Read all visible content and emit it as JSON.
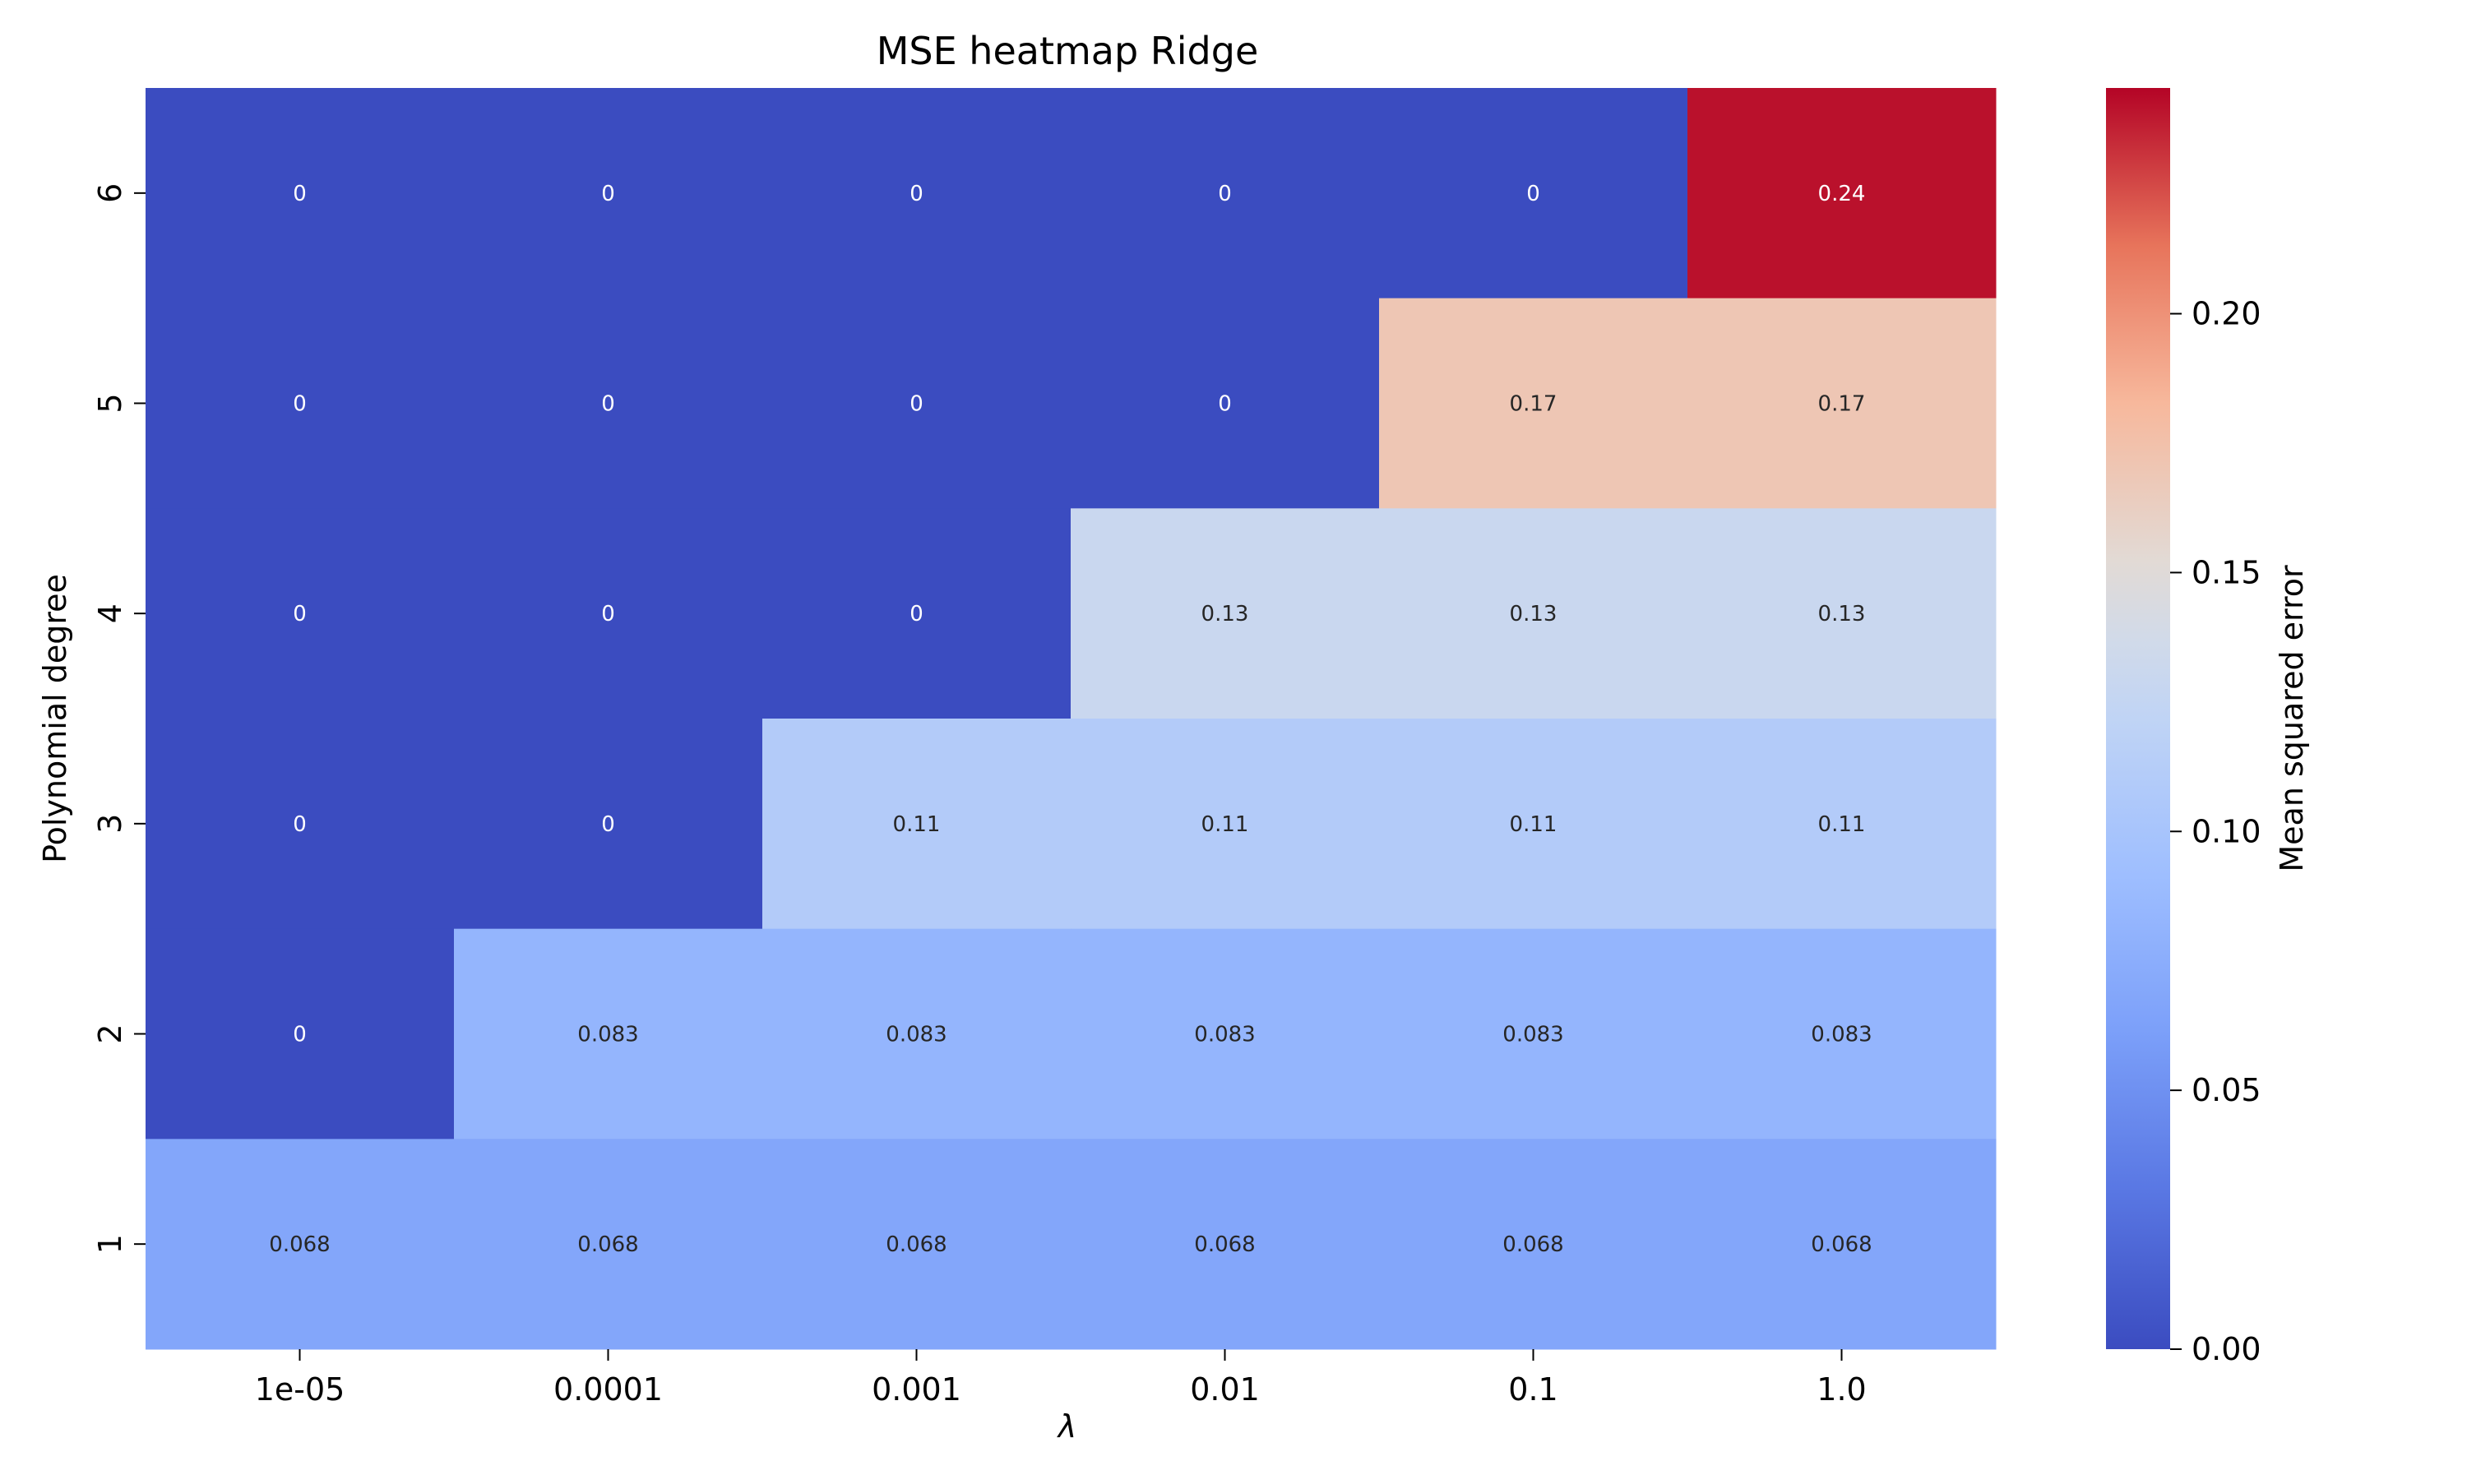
{
  "chart_data": {
    "type": "heatmap",
    "title": "MSE heatmap Ridge",
    "xlabel": "λ",
    "ylabel": "Polynomial degree",
    "x_categories": [
      "1e-05",
      "0.0001",
      "0.001",
      "0.01",
      "0.1",
      "1.0"
    ],
    "y_categories": [
      "6",
      "5",
      "4",
      "3",
      "2",
      "1"
    ],
    "values": [
      [
        0,
        0,
        0,
        0,
        0,
        0.24
      ],
      [
        0,
        0,
        0,
        0,
        0.17,
        0.17
      ],
      [
        0,
        0,
        0,
        0.13,
        0.13,
        0.13
      ],
      [
        0,
        0,
        0.11,
        0.11,
        0.11,
        0.11
      ],
      [
        0,
        0.083,
        0.083,
        0.083,
        0.083,
        0.083
      ],
      [
        0.068,
        0.068,
        0.068,
        0.068,
        0.068,
        0.068
      ]
    ],
    "cell_labels": [
      [
        "0",
        "0",
        "0",
        "0",
        "0",
        "0.24"
      ],
      [
        "0",
        "0",
        "0",
        "0",
        "0.17",
        "0.17"
      ],
      [
        "0",
        "0",
        "0",
        "0.13",
        "0.13",
        "0.13"
      ],
      [
        "0",
        "0",
        "0.11",
        "0.11",
        "0.11",
        "0.11"
      ],
      [
        "0",
        "0.083",
        "0.083",
        "0.083",
        "0.083",
        "0.083"
      ],
      [
        "0.068",
        "0.068",
        "0.068",
        "0.068",
        "0.068",
        "0.068"
      ]
    ],
    "colorbar": {
      "label": "Mean squared error",
      "range": [
        0,
        0.2436
      ],
      "ticks": [
        0.0,
        0.05,
        0.1,
        0.15,
        0.2
      ],
      "tick_labels": [
        "0.00",
        "0.05",
        "0.10",
        "0.15",
        "0.20"
      ],
      "colormap": "coolwarm"
    }
  }
}
